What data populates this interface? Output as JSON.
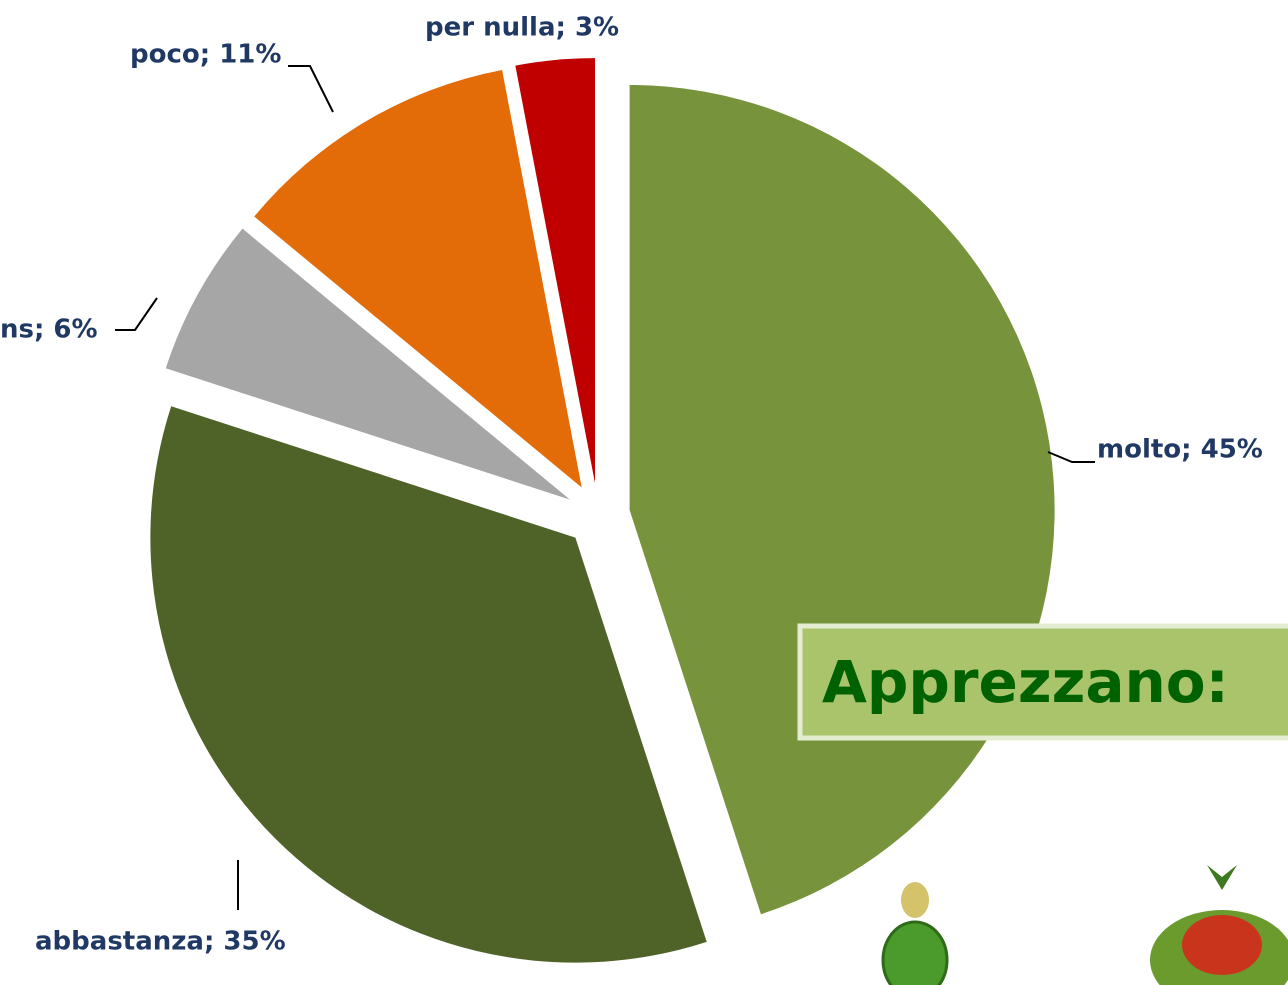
{
  "chart_data": {
    "type": "pie",
    "values": [
      45,
      35,
      6,
      11,
      3
    ],
    "value_labels": [
      "molto; 45%",
      "abbastanza; 35%",
      "ns; 6%",
      "poco; 11%",
      "per nulla; 3%"
    ],
    "colors": [
      "#77933c",
      "#4f6228",
      "#a6a6a6",
      "#e36c09",
      "#c00000"
    ],
    "annotation": "Apprezzano:"
  }
}
